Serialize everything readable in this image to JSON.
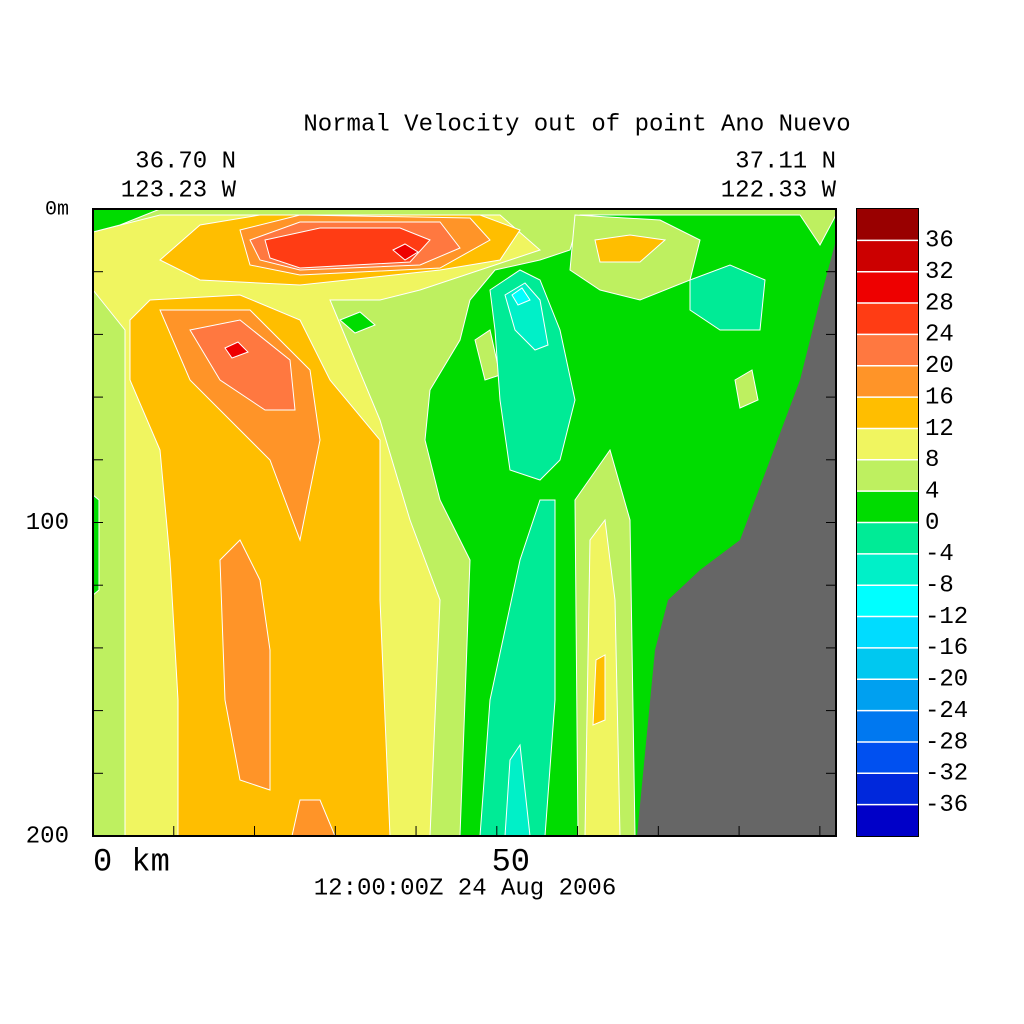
{
  "chart_data": {
    "type": "contour",
    "title": "Normal Velocity out of point Ano Nuevo",
    "left_top_label": "36.70 N",
    "left_bottom_label": "123.23 W",
    "right_top_label": "37.11 N",
    "right_bottom_label": "122.33 W",
    "time_label": "12:00:00Z  24 Aug 2006",
    "xlim": [
      0,
      92
    ],
    "xticks": [
      {
        "value": 0,
        "label": "0 km"
      },
      50
    ],
    "x_minor_ticks": [
      10,
      20,
      30,
      40,
      60,
      70,
      80,
      90
    ],
    "ylim": [
      0,
      200
    ],
    "yticks": [
      {
        "value": 0,
        "label": "0m"
      },
      100,
      200
    ],
    "y_minor_ticks": [
      20,
      40,
      60,
      80,
      120,
      140,
      160,
      180
    ],
    "levels": [
      -40,
      -36,
      -32,
      -28,
      -24,
      -20,
      -16,
      -12,
      -8,
      -4,
      0,
      4,
      8,
      12,
      16,
      20,
      24,
      28,
      32,
      36,
      40
    ],
    "colors": [
      "#0000c8",
      "#0028dc",
      "#0050f0",
      "#0078f0",
      "#00a0f0",
      "#00c8f0",
      "#00dcff",
      "#00ffff",
      "#00f0c8",
      "#00eb96",
      "#00dc00",
      "#bef060",
      "#f0f560",
      "#ffbe00",
      "#ff9428",
      "#ff7840",
      "#ff3c14",
      "#ee0000",
      "#cc0000",
      "#990000"
    ],
    "colorbar_ticks": [
      -36,
      -32,
      -28,
      -24,
      -20,
      -16,
      -12,
      -8,
      -4,
      0,
      4,
      8,
      12,
      16,
      20,
      24,
      28,
      32,
      36
    ]
  }
}
